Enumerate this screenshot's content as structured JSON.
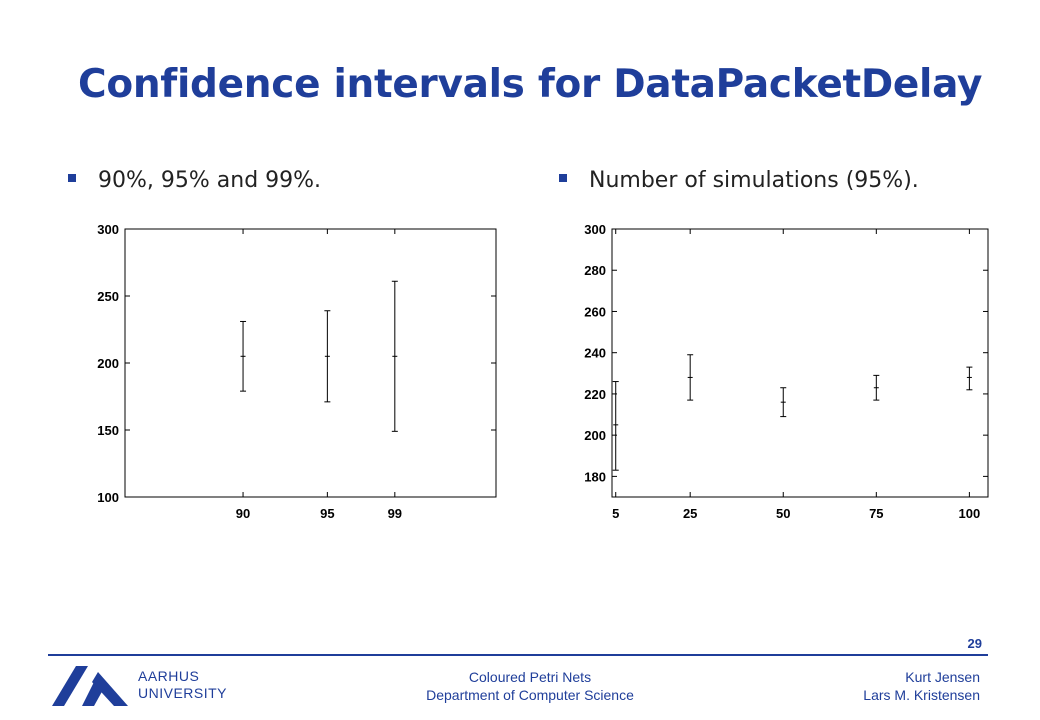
{
  "slide": {
    "title": "Confidence intervals for DataPacketDelay",
    "bullets": [
      "90%, 95% and 99%.",
      "Number of simulations (95%)."
    ]
  },
  "chart_data": [
    {
      "type": "errorbar",
      "categories": [
        "90",
        "95",
        "99"
      ],
      "x": [
        90,
        95,
        99
      ],
      "mean": [
        205,
        205,
        205
      ],
      "lower": [
        179,
        171,
        149
      ],
      "upper": [
        231,
        239,
        261
      ],
      "xlim": [
        83,
        105
      ],
      "ylim": [
        100,
        300
      ],
      "yticks": [
        100,
        150,
        200,
        250,
        300
      ],
      "title": "",
      "xlabel": "",
      "ylabel": "",
      "grid": false
    },
    {
      "type": "errorbar",
      "categories": [
        "5",
        "25",
        "50",
        "75",
        "100"
      ],
      "x": [
        5,
        25,
        50,
        75,
        100
      ],
      "mean": [
        205,
        228,
        216,
        223,
        228
      ],
      "lower": [
        183,
        217,
        209,
        217,
        222
      ],
      "upper": [
        226,
        239,
        223,
        229,
        233
      ],
      "xlim": [
        4,
        105
      ],
      "ylim": [
        170,
        300
      ],
      "yticks": [
        180,
        200,
        220,
        240,
        260,
        280,
        300
      ],
      "title": "",
      "xlabel": "",
      "ylabel": "",
      "grid": false
    }
  ],
  "footer": {
    "page_number": "29",
    "university_line1": "AARHUS",
    "university_line2": "UNIVERSITY",
    "center_line1": "Coloured Petri Nets",
    "center_line2": "Department of Computer Science",
    "right_line1": "Kurt Jensen",
    "right_line2": "Lars M. Kristensen"
  },
  "colors": {
    "accent": "#1f3e9a",
    "text": "#222222"
  }
}
